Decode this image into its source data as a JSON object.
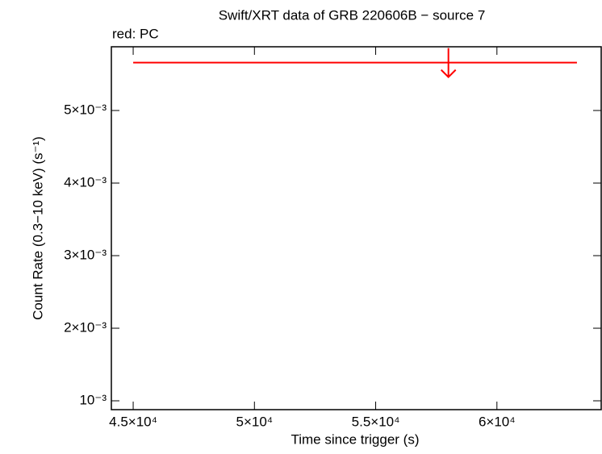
{
  "chart_data": {
    "type": "scatter",
    "title": "Swift/XRT data of GRB 220606B − source 7",
    "x_label": "Time since trigger (s)",
    "y_label": "Count Rate (0.3−10 keV) (s⁻¹)",
    "series": [
      {
        "name": "red: PC",
        "color": "#ff0000",
        "upper_limit": true,
        "x": [
          58000
        ],
        "x_low": [
          45000
        ],
        "x_high": [
          63300
        ],
        "values": [
          0.00566
        ]
      }
    ],
    "xlim": [
      44100,
      64300
    ],
    "xticks": [
      {
        "value": 45000,
        "label": "4.5×10⁴"
      },
      {
        "value": 50000,
        "label": "5×10⁴"
      },
      {
        "value": 55000,
        "label": "5.5×10⁴"
      },
      {
        "value": 60000,
        "label": "6×10⁴"
      }
    ],
    "ylim": [
      0.000878,
      0.005878
    ],
    "yticks": [
      {
        "value": 0.001,
        "label": "10⁻³"
      },
      {
        "value": 0.002,
        "label": "2×10⁻³"
      },
      {
        "value": 0.003,
        "label": "3×10⁻³"
      },
      {
        "value": 0.004,
        "label": "4×10⁻³"
      },
      {
        "value": 0.005,
        "label": "5×10⁻³"
      }
    ],
    "grid": false
  }
}
